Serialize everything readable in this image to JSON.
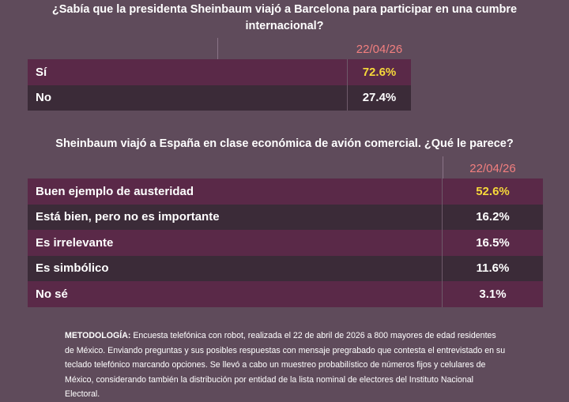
{
  "survey_1": {
    "question": "¿Sabía que la presidenta Sheinbaum viajó a Barcelona para participar en una cumbre internacional?",
    "date": "22/04/26",
    "rows": [
      [
        "Sí",
        "72.6%"
      ],
      [
        "No",
        "27.4%"
      ]
    ]
  },
  "survey_2": {
    "question": "Sheinbaum viajó a España en clase económica de avión comercial. ¿Qué le parece?",
    "date": "22/04/26",
    "rows": [
      [
        "Buen ejemplo de austeridad",
        "52.6%"
      ],
      [
        "Está bien, pero no es importante",
        "16.2%"
      ],
      [
        "Es irrelevante",
        "16.5%"
      ],
      [
        "Es simbólico",
        "11.6%"
      ],
      [
        "No sé",
        "3.1%"
      ]
    ]
  },
  "methodology": {
    "label": "METODOLOGÍA:",
    "text": "Encuesta telefónica con robot, realizada el 22 de abril de 2026 a 800 mayores de edad residentes de México. Enviando preguntas y sus posibles respuestas con mensaje pregrabado que contesta el entrevistado en su teclado telefónico marcando opciones. Se llevó a cabo un muestreo probabilístico de números fijos y celulares de México, considerando también la distribución por entidad de la lista nominal de electores del Instituto Nacional Electoral."
  }
}
